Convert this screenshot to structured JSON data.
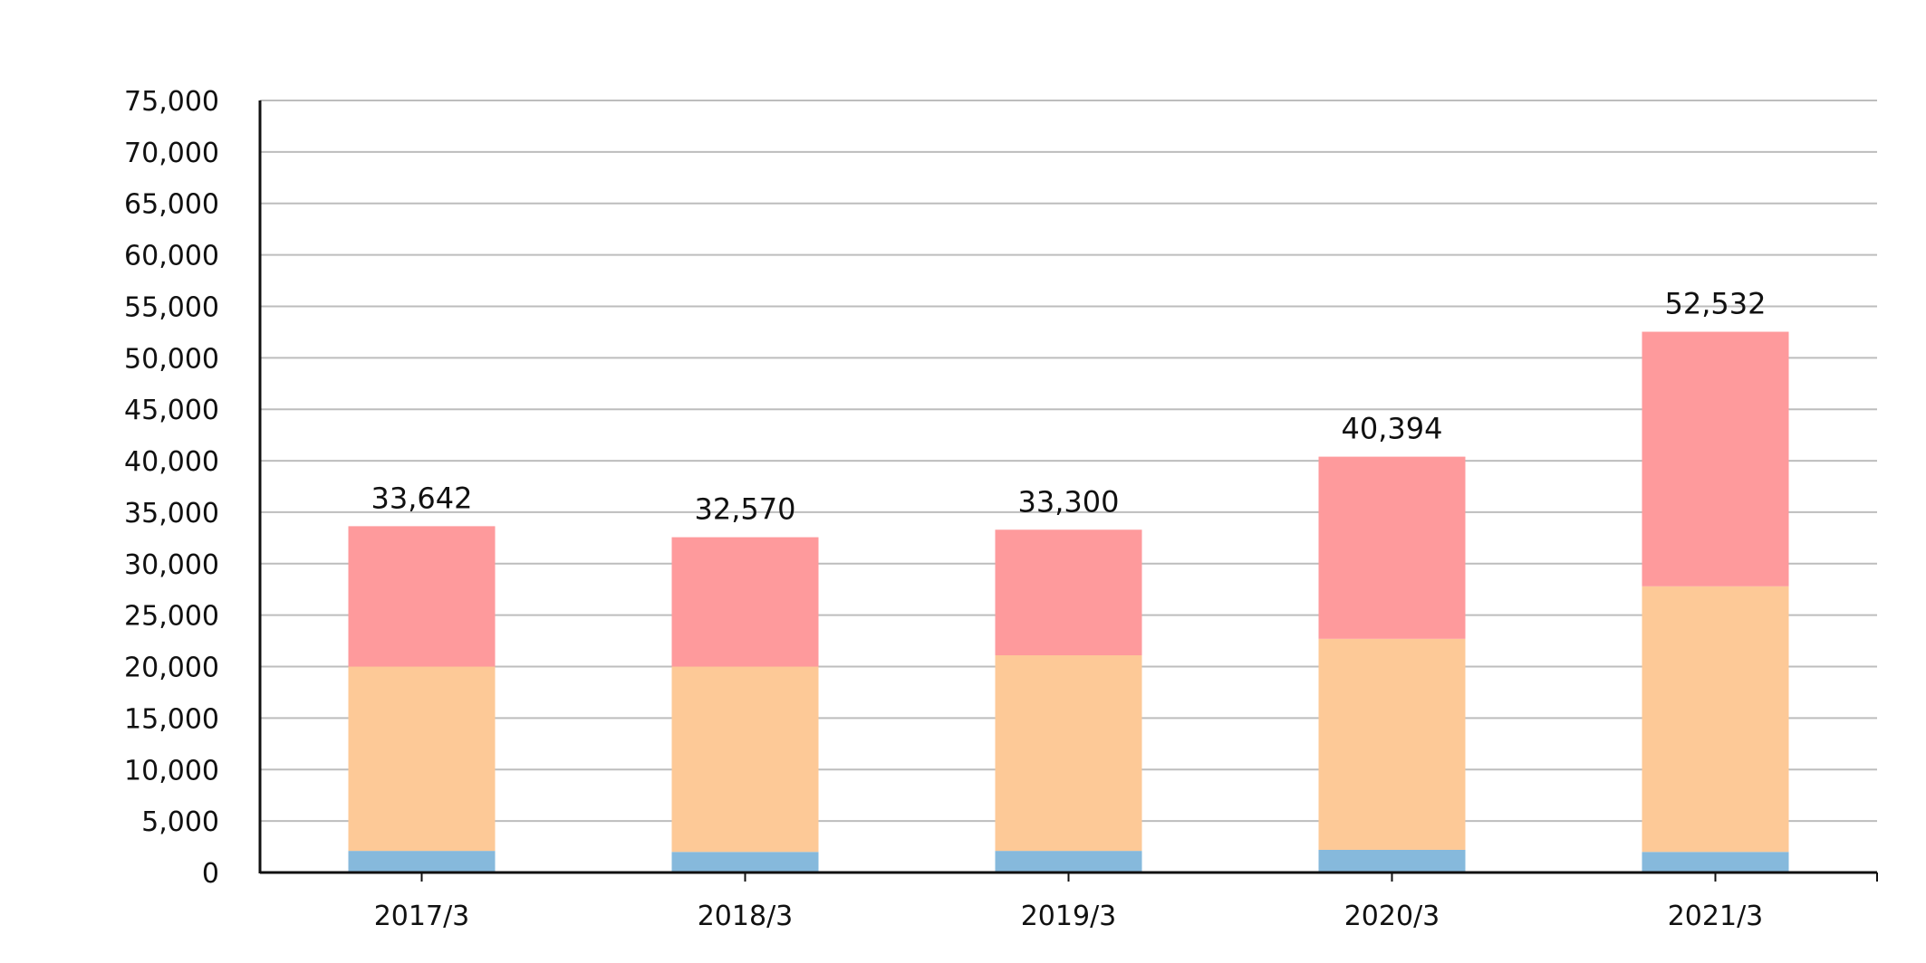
{
  "chart_data": {
    "type": "bar",
    "stacked": true,
    "title": "",
    "xlabel": "",
    "ylabel": "",
    "categories": [
      "2017/3",
      "2018/3",
      "2019/3",
      "2020/3",
      "2021/3"
    ],
    "series": [
      {
        "values": [
          2100,
          2000,
          2100,
          2200,
          2000
        ],
        "color": "#86b9dc"
      },
      {
        "values": [
          17900,
          18000,
          19000,
          20500,
          25800
        ],
        "color": "#fdc997"
      },
      {
        "values": [
          13642,
          12570,
          12200,
          17694,
          24732
        ],
        "color": "#fe9a9c"
      }
    ],
    "totals": [
      33642,
      32570,
      33300,
      40394,
      52532
    ],
    "total_labels": [
      "33,642",
      "32,570",
      "33,300",
      "40,394",
      "52,532"
    ],
    "ylim": [
      0,
      75000
    ],
    "y_ticks": [
      0,
      5000,
      10000,
      15000,
      20000,
      25000,
      30000,
      35000,
      40000,
      45000,
      50000,
      55000,
      60000,
      65000,
      70000,
      75000
    ],
    "y_tick_labels": [
      "0",
      "5,000",
      "10,000",
      "15,000",
      "20,000",
      "25,000",
      "30,000",
      "35,000",
      "40,000",
      "45,000",
      "50,000",
      "55,000",
      "60,000",
      "65,000",
      "70,000",
      "75,000"
    ],
    "grid": true,
    "legend": "none"
  }
}
